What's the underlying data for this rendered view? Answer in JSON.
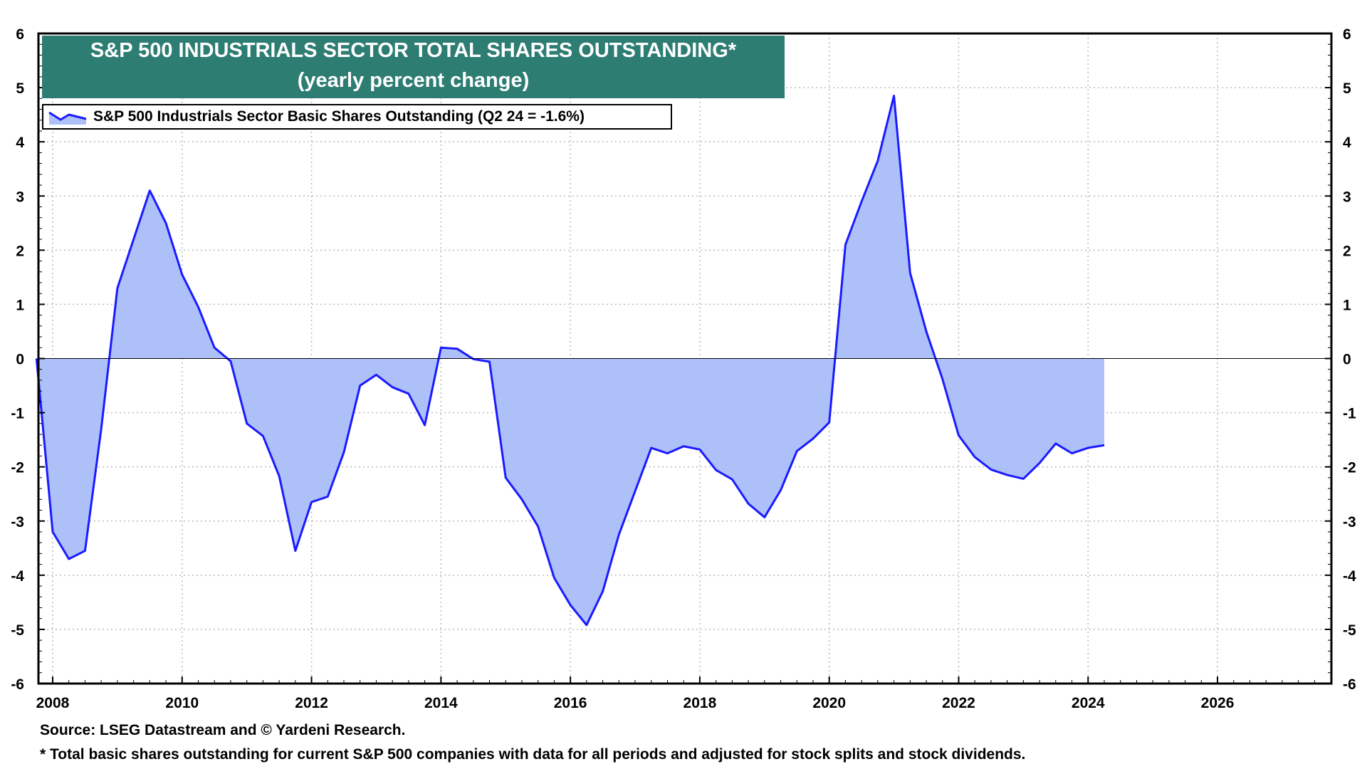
{
  "chart_data": {
    "type": "area",
    "title": "S&P 500 INDUSTRIALS SECTOR TOTAL SHARES OUTSTANDING*",
    "subtitle": "(yearly percent change)",
    "xlabel": "",
    "ylabel": "",
    "xlim": [
      2007.78,
      2027.76
    ],
    "ylim": [
      -6,
      6
    ],
    "x_ticks": [
      "2008",
      "2010",
      "2012",
      "2014",
      "2016",
      "2018",
      "2020",
      "2022",
      "2024",
      "2026"
    ],
    "y_ticks": [
      6,
      5,
      4,
      3,
      2,
      1,
      0,
      -1,
      -2,
      -3,
      -4,
      -5,
      -6
    ],
    "grid": true,
    "legend_position": "top-left",
    "colors": {
      "line": "#1a1aff",
      "fill": "#adc0f8",
      "title_bg": "#2e7d72"
    },
    "series": [
      {
        "name": "S&P 500 Industrials Sector Basic Shares Outstanding (Q2 24 = -1.6%)",
        "frequency": "quarterly",
        "x": [
          "2007Q4",
          "2008Q1",
          "2008Q2",
          "2008Q3",
          "2008Q4",
          "2009Q1",
          "2009Q2",
          "2009Q3",
          "2009Q4",
          "2010Q1",
          "2010Q2",
          "2010Q3",
          "2010Q4",
          "2011Q1",
          "2011Q2",
          "2011Q3",
          "2011Q4",
          "2012Q1",
          "2012Q2",
          "2012Q3",
          "2012Q4",
          "2013Q1",
          "2013Q2",
          "2013Q3",
          "2013Q4",
          "2014Q1",
          "2014Q2",
          "2014Q3",
          "2014Q4",
          "2015Q1",
          "2015Q2",
          "2015Q3",
          "2015Q4",
          "2016Q1",
          "2016Q2",
          "2016Q3",
          "2016Q4",
          "2017Q1",
          "2017Q2",
          "2017Q3",
          "2017Q4",
          "2018Q1",
          "2018Q2",
          "2018Q3",
          "2018Q4",
          "2019Q1",
          "2019Q2",
          "2019Q3",
          "2019Q4",
          "2020Q1",
          "2020Q2",
          "2020Q3",
          "2020Q4",
          "2021Q1",
          "2021Q2",
          "2021Q3",
          "2021Q4",
          "2022Q1",
          "2022Q2",
          "2022Q3",
          "2022Q4",
          "2023Q1",
          "2023Q2",
          "2023Q3",
          "2023Q4",
          "2024Q1",
          "2024Q2"
        ],
        "values": [
          0,
          -3.2,
          -3.7,
          -3.55,
          -1.3,
          1.3,
          2.2,
          3.1,
          2.5,
          1.55,
          0.95,
          0.2,
          -0.05,
          -1.2,
          -1.43,
          -2.17,
          -3.55,
          -2.65,
          -2.55,
          -1.73,
          -0.5,
          -0.3,
          -0.53,
          -0.65,
          -1.23,
          0.2,
          0.18,
          -0.01,
          -0.06,
          -2.2,
          -2.6,
          -3.1,
          -4.05,
          -4.55,
          -4.92,
          -4.3,
          -3.25,
          -2.45,
          -1.65,
          -1.75,
          -1.62,
          -1.68,
          -2.06,
          -2.23,
          -2.68,
          -2.93,
          -2.43,
          -1.71,
          -1.48,
          -1.18,
          2.1,
          2.9,
          3.65,
          4.85,
          1.58,
          0.5,
          -0.38,
          -1.42,
          -1.82,
          -2.05,
          -2.15,
          -2.22,
          -1.93,
          -1.57,
          -1.75,
          -1.65,
          -1.6
        ]
      }
    ],
    "footnotes": [
      "Source: LSEG Datastream and © Yardeni Research.",
      "* Total basic shares outstanding for current S&P 500 companies with data for all periods and adjusted for stock splits and stock dividends."
    ]
  }
}
